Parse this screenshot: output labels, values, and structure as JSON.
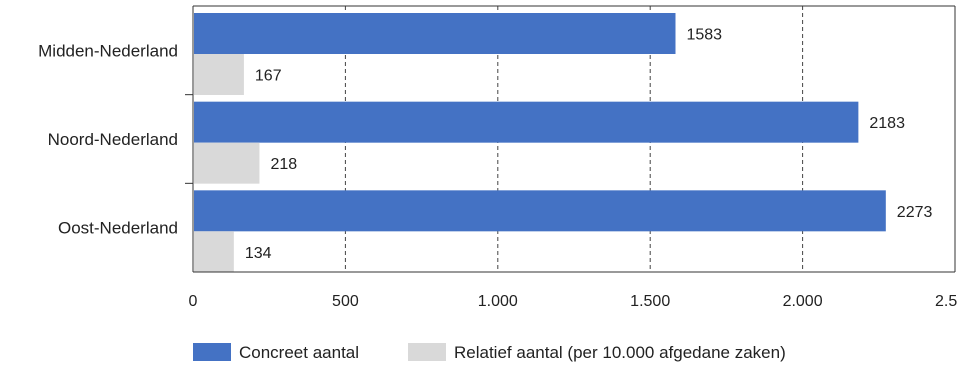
{
  "chart_data": {
    "type": "bar",
    "orientation": "horizontal",
    "categories": [
      "Midden-Nederland",
      "Noord-Nederland",
      "Oost-Nederland"
    ],
    "series": [
      {
        "name": "Concreet aantal",
        "values": [
          1583,
          2183,
          2273
        ],
        "labels": [
          "1583",
          "2183",
          "2273"
        ],
        "color": "#4472C4"
      },
      {
        "name": "Relatief aantal (per 10.000 afgedane zaken)",
        "values": [
          167,
          218,
          134
        ],
        "labels": [
          "167",
          "218",
          "134"
        ],
        "color": "#D9D9D9"
      }
    ],
    "xlim": [
      0,
      2500
    ],
    "xticks": [
      0,
      500,
      1000,
      1500,
      2000,
      2500
    ],
    "xtick_labels": [
      "0",
      "500",
      "1.000",
      "1.500",
      "2.000",
      "2.500"
    ],
    "grid": "vertical dashed",
    "legend_position": "bottom"
  }
}
